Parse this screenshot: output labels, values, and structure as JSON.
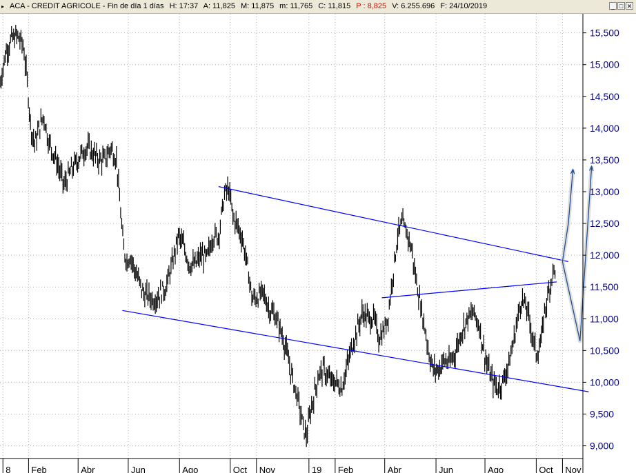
{
  "header": {
    "marker": "▸",
    "title": "ACA - CREDIT AGRICOLE - Fin de día 1 días",
    "high": "H: 17:37",
    "open": "A: 11,825",
    "max": "M: 11,875",
    "min": "m: 11,765",
    "close": "C: 11,815",
    "pct": "P : 8,825",
    "volume": "V: 6.255.696",
    "date": "F: 24/10/2019",
    "buttons": [
      "_",
      "□",
      "✕"
    ]
  },
  "colors": {
    "price": "#000000",
    "trendlines": "#0000ff",
    "arrows": "#1f4e8c",
    "axis_text": "#000080",
    "grid": "#b0b0b0",
    "pct": "#e00000"
  },
  "chart_data": {
    "type": "candlestick",
    "ylim": [
      8.8,
      15.8
    ],
    "y_ticks": [
      9.0,
      9.5,
      10.0,
      10.5,
      11.0,
      11.5,
      12.0,
      12.5,
      13.0,
      13.5,
      14.0,
      14.5,
      15.0,
      15.5
    ],
    "y_tick_labels": [
      "9,000",
      "9,500",
      "10,000",
      "10,500",
      "11,000",
      "11,500",
      "12,000",
      "12,500",
      "13,000",
      "13,500",
      "14,000",
      "14,500",
      "15,000",
      "15,500"
    ],
    "x_range": [
      0,
      100
    ],
    "x_ticks": [
      {
        "x": 0.5,
        "label": "8"
      },
      {
        "x": 4.9,
        "label": "Feb"
      },
      {
        "x": 13.4,
        "label": "Abr"
      },
      {
        "x": 22.0,
        "label": "Jun"
      },
      {
        "x": 30.8,
        "label": "Ago"
      },
      {
        "x": 39.5,
        "label": "Oct"
      },
      {
        "x": 44.0,
        "label": "Nov"
      },
      {
        "x": 53.0,
        "label": "19"
      },
      {
        "x": 57.5,
        "label": "Feb"
      },
      {
        "x": 66.0,
        "label": "Abr"
      },
      {
        "x": 74.8,
        "label": "Jun"
      },
      {
        "x": 83.2,
        "label": "Ago"
      },
      {
        "x": 92.0,
        "label": "Oct"
      },
      {
        "x": 96.5,
        "label": "Nov"
      }
    ],
    "price_path": [
      [
        0,
        14.7
      ],
      [
        1,
        15.2
      ],
      [
        2,
        15.4
      ],
      [
        3,
        15.45
      ],
      [
        4,
        15.3
      ],
      [
        4.6,
        14.8
      ],
      [
        5.3,
        14.0
      ],
      [
        6.0,
        13.75
      ],
      [
        6.7,
        14.0
      ],
      [
        7.5,
        14.2
      ],
      [
        8.3,
        13.8
      ],
      [
        9.2,
        13.6
      ],
      [
        10.0,
        13.4
      ],
      [
        11.0,
        13.1
      ],
      [
        12.0,
        13.3
      ],
      [
        13.0,
        13.45
      ],
      [
        14.0,
        13.6
      ],
      [
        15.0,
        13.7
      ],
      [
        16.0,
        13.6
      ],
      [
        17.0,
        13.5
      ],
      [
        18.0,
        13.5
      ],
      [
        19.0,
        13.7
      ],
      [
        20.0,
        13.5
      ],
      [
        20.5,
        12.9
      ],
      [
        21.2,
        12.1
      ],
      [
        21.8,
        11.9
      ],
      [
        22.3,
        12.0
      ],
      [
        23.0,
        11.8
      ],
      [
        23.8,
        11.6
      ],
      [
        24.6,
        11.4
      ],
      [
        25.5,
        11.35
      ],
      [
        26.5,
        11.3
      ],
      [
        27.5,
        11.4
      ],
      [
        28.5,
        11.5
      ],
      [
        29.5,
        11.85
      ],
      [
        30.6,
        12.3
      ],
      [
        31.5,
        12.15
      ],
      [
        32.5,
        11.85
      ],
      [
        33.5,
        11.85
      ],
      [
        34.5,
        12.0
      ],
      [
        35.5,
        11.95
      ],
      [
        36.5,
        12.3
      ],
      [
        37.5,
        12.3
      ],
      [
        38.5,
        12.95
      ],
      [
        39.2,
        13.05
      ],
      [
        40.0,
        12.6
      ],
      [
        40.8,
        12.45
      ],
      [
        41.6,
        12.25
      ],
      [
        42.5,
        11.8
      ],
      [
        43.3,
        11.3
      ],
      [
        44.2,
        11.35
      ],
      [
        45.2,
        11.4
      ],
      [
        46.2,
        11.15
      ],
      [
        47.2,
        11.05
      ],
      [
        48.2,
        10.8
      ],
      [
        49.0,
        10.55
      ],
      [
        49.8,
        10.2
      ],
      [
        50.5,
        9.95
      ],
      [
        51.2,
        9.7
      ],
      [
        52.0,
        9.3
      ],
      [
        52.6,
        9.15
      ],
      [
        53.2,
        9.5
      ],
      [
        53.9,
        9.8
      ],
      [
        54.6,
        10.1
      ],
      [
        55.4,
        10.2
      ],
      [
        56.2,
        10.1
      ],
      [
        57.0,
        10.0
      ],
      [
        57.8,
        10.0
      ],
      [
        58.6,
        9.9
      ],
      [
        59.4,
        10.2
      ],
      [
        60.2,
        10.5
      ],
      [
        61.2,
        10.8
      ],
      [
        62.2,
        11.1
      ],
      [
        63.2,
        11.0
      ],
      [
        64.2,
        11.0
      ],
      [
        65.0,
        10.7
      ],
      [
        65.8,
        10.8
      ],
      [
        66.5,
        11.0
      ],
      [
        67.3,
        11.6
      ],
      [
        68.2,
        12.3
      ],
      [
        69.0,
        12.5
      ],
      [
        69.8,
        12.35
      ],
      [
        70.6,
        12.1
      ],
      [
        71.4,
        11.6
      ],
      [
        72.2,
        11.2
      ],
      [
        73.0,
        10.8
      ],
      [
        73.6,
        10.45
      ],
      [
        74.3,
        10.2
      ],
      [
        75.2,
        10.2
      ],
      [
        76.2,
        10.35
      ],
      [
        77.2,
        10.3
      ],
      [
        78.2,
        10.5
      ],
      [
        79.2,
        10.8
      ],
      [
        80.2,
        11.0
      ],
      [
        81.2,
        11.1
      ],
      [
        82.2,
        10.9
      ],
      [
        83.0,
        10.5
      ],
      [
        83.8,
        10.2
      ],
      [
        84.6,
        10.0
      ],
      [
        85.4,
        9.9
      ],
      [
        86.2,
        10.0
      ],
      [
        87.0,
        10.2
      ],
      [
        87.8,
        10.5
      ],
      [
        88.6,
        10.9
      ],
      [
        89.4,
        11.3
      ],
      [
        90.2,
        11.2
      ],
      [
        90.8,
        11.0
      ],
      [
        91.4,
        10.7
      ],
      [
        92.0,
        10.45
      ],
      [
        92.8,
        10.6
      ],
      [
        93.4,
        11.1
      ],
      [
        94.2,
        11.45
      ],
      [
        94.9,
        11.75
      ],
      [
        95.4,
        11.8
      ]
    ],
    "trendlines": [
      {
        "name": "upper",
        "points": [
          [
            37.5,
            13.08
          ],
          [
            97.5,
            11.9
          ]
        ]
      },
      {
        "name": "lower",
        "points": [
          [
            21.0,
            11.13
          ],
          [
            101.0,
            9.85
          ]
        ]
      },
      {
        "name": "inner",
        "points": [
          [
            65.5,
            11.33
          ],
          [
            95.5,
            11.58
          ]
        ]
      }
    ],
    "projection_arrows": [
      {
        "points": [
          [
            96.5,
            11.9
          ],
          [
            97.5,
            12.5
          ],
          [
            98.3,
            13.35
          ]
        ]
      },
      {
        "points": [
          [
            96.5,
            11.9
          ],
          [
            99.5,
            10.65
          ],
          [
            101.5,
            13.4
          ]
        ]
      }
    ],
    "grid": true
  }
}
